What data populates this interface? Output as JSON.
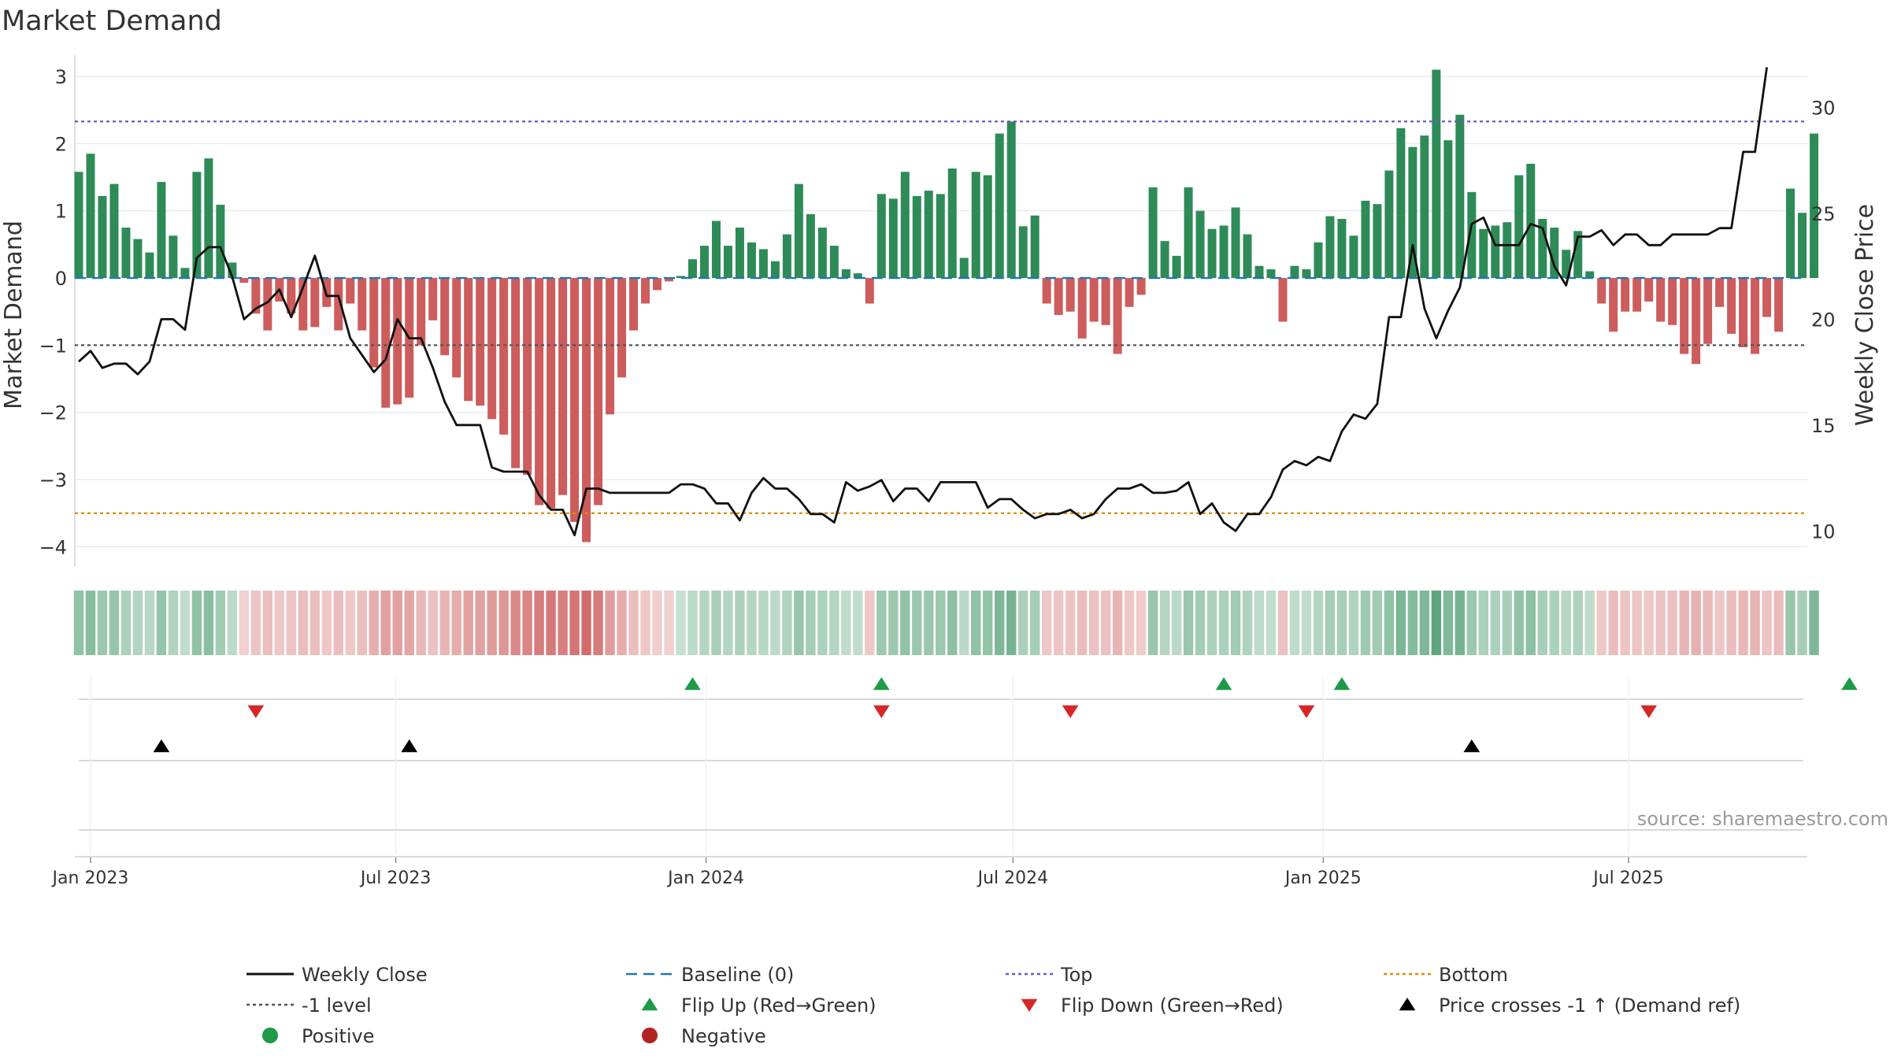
{
  "title": "Market Demand",
  "source": "source: sharemaestro.com",
  "colors": {
    "positive": "#2e8b57",
    "negative": "#cd5c5c",
    "price": "#111111",
    "baseline": "#1f77b4",
    "top": "#6a5acd",
    "bottom": "#e08a00",
    "level": "#555555",
    "flip_up": "#1f9a48",
    "flip_down": "#d62728",
    "cross": "#000000"
  },
  "chart_data": {
    "type": "bar",
    "title": "Market Demand",
    "ylabel": "Market Demand",
    "y2label": "Weekly Close Price",
    "ylim": [
      -4.3,
      3.2
    ],
    "y2lim": [
      8.3,
      32.1
    ],
    "yticks": [
      "3",
      "2",
      "1",
      "0",
      "−1",
      "−2",
      "−3",
      "−4"
    ],
    "ytick_values": [
      3,
      2,
      1,
      0,
      -1,
      -2,
      -3,
      -4
    ],
    "y2ticks": [
      "30",
      "25",
      "20",
      "15",
      "10"
    ],
    "y2tick_values": [
      30,
      25,
      20,
      15,
      10
    ],
    "xticks": [
      "Jan 2023",
      "Jul 2023",
      "Jan 2024",
      "Jul 2024",
      "Jan 2025",
      "Jul 2025"
    ],
    "xtick_dates": [
      "2023-01-01",
      "2023-07-01",
      "2024-01-01",
      "2024-07-01",
      "2025-01-01",
      "2025-07-01"
    ],
    "first_week": "2022-12-25",
    "week_step_days": 7,
    "reference_lines": {
      "baseline": 0,
      "top": 2.33,
      "bottom": -3.5,
      "level": -1
    },
    "series": [
      {
        "name": "Market Demand",
        "values": [
          1.58,
          1.85,
          1.22,
          1.4,
          0.75,
          0.58,
          0.38,
          1.43,
          0.63,
          0.15,
          1.58,
          1.78,
          1.09,
          0.23,
          -0.07,
          -0.53,
          -0.78,
          -0.35,
          -0.53,
          -0.78,
          -0.73,
          -0.43,
          -0.78,
          -0.38,
          -0.78,
          -1.33,
          -1.93,
          -1.88,
          -1.78,
          -1.0,
          -0.63,
          -1.15,
          -1.48,
          -1.83,
          -1.9,
          -2.1,
          -2.33,
          -2.83,
          -2.93,
          -3.38,
          -3.43,
          -3.23,
          -3.63,
          -3.93,
          -3.38,
          -2.03,
          -1.48,
          -0.78,
          -0.38,
          -0.18,
          -0.05,
          0.03,
          0.28,
          0.48,
          0.85,
          0.48,
          0.75,
          0.53,
          0.43,
          0.25,
          0.65,
          1.4,
          0.95,
          0.75,
          0.48,
          0.13,
          0.07,
          -0.38,
          1.25,
          1.18,
          1.58,
          1.22,
          1.3,
          1.25,
          1.63,
          0.3,
          1.58,
          1.53,
          2.15,
          2.33,
          0.77,
          0.93,
          -0.38,
          -0.55,
          -0.5,
          -0.9,
          -0.65,
          -0.7,
          -1.13,
          -0.43,
          -0.25,
          1.35,
          0.55,
          0.33,
          1.35,
          1.0,
          0.73,
          0.78,
          1.05,
          0.65,
          0.18,
          0.13,
          -0.65,
          0.18,
          0.13,
          0.53,
          0.92,
          0.88,
          0.63,
          1.15,
          1.1,
          1.6,
          2.23,
          1.95,
          2.12,
          3.1,
          2.05,
          2.43,
          1.28,
          0.73,
          0.78,
          0.83,
          1.53,
          1.7,
          0.88,
          0.75,
          0.42,
          0.7,
          0.1,
          -0.38,
          -0.8,
          -0.5,
          -0.5,
          -0.35,
          -0.65,
          -0.7,
          -1.13,
          -1.28,
          -0.98,
          -0.43,
          -0.83,
          -1.03,
          -1.13,
          -0.58,
          -0.8,
          1.33,
          0.97,
          2.15
        ]
      },
      {
        "name": "Weekly Close",
        "values": [
          18.0,
          18.5,
          17.7,
          17.9,
          17.9,
          17.4,
          18.0,
          20.0,
          20.0,
          19.5,
          22.9,
          23.4,
          23.4,
          22.0,
          20.0,
          20.5,
          20.8,
          21.4,
          20.1,
          21.5,
          23.0,
          21.1,
          21.1,
          19.1,
          18.3,
          17.5,
          18.1,
          20.0,
          19.1,
          19.1,
          17.7,
          16.1,
          15.0,
          15.0,
          15.0,
          13.0,
          12.8,
          12.8,
          12.8,
          11.7,
          11.0,
          11.0,
          9.8,
          12.0,
          12.0,
          11.8,
          11.8,
          11.8,
          11.8,
          11.8,
          11.8,
          12.2,
          12.2,
          12.0,
          11.3,
          11.3,
          10.5,
          11.8,
          12.5,
          12.0,
          12.0,
          11.5,
          10.8,
          10.8,
          10.4,
          12.3,
          11.9,
          12.1,
          12.4,
          11.4,
          12.0,
          12.0,
          11.4,
          12.3,
          12.3,
          12.3,
          12.3,
          11.1,
          11.5,
          11.5,
          11.0,
          10.6,
          10.8,
          10.8,
          11.0,
          10.6,
          10.8,
          11.5,
          12.0,
          12.0,
          12.2,
          11.8,
          11.8,
          11.9,
          12.3,
          10.8,
          11.3,
          10.4,
          10.0,
          10.8,
          10.8,
          11.6,
          12.9,
          13.3,
          13.1,
          13.5,
          13.3,
          14.7,
          15.5,
          15.3,
          16.0,
          20.1,
          20.1,
          23.5,
          20.5,
          19.1,
          20.4,
          21.5,
          24.5,
          24.8,
          23.5,
          23.5,
          23.5,
          24.5,
          24.3,
          22.5,
          21.6,
          23.9,
          23.9,
          24.2,
          23.5,
          24.0,
          24.0,
          23.5,
          23.5,
          24.0,
          24.0,
          24.0,
          24.0,
          24.3,
          24.3,
          27.9,
          27.9,
          31.9
        ]
      }
    ],
    "color_strip": {
      "label": "Demand intensity strip"
    },
    "flip_up_weeks": [
      52,
      68,
      97,
      107,
      150
    ],
    "flip_down_weeks": [
      15,
      68,
      84,
      104,
      133
    ],
    "cross_weeks": [
      7,
      28,
      118
    ],
    "legend_placement": "bottom",
    "grid": true
  },
  "legend": [
    {
      "label": "Weekly Close",
      "kind": "line",
      "color": "#111111"
    },
    {
      "label": "Baseline (0)",
      "kind": "dash",
      "color": "#1f77b4"
    },
    {
      "label": "Top",
      "kind": "dot",
      "color": "#6a5acd"
    },
    {
      "label": "Bottom",
      "kind": "dot",
      "color": "#e08a00"
    },
    {
      "label": "-1 level",
      "kind": "dot",
      "color": "#555555"
    },
    {
      "label": "Flip Up (Red→Green)",
      "kind": "tri-up",
      "color": "#1f9a48"
    },
    {
      "label": "Flip Down (Green→Red)",
      "kind": "tri-down",
      "color": "#d62728"
    },
    {
      "label": "Price crosses -1 ↑ (Demand ref)",
      "kind": "tri-up",
      "color": "#000000"
    },
    {
      "label": "Positive",
      "kind": "circle",
      "color": "#1f9a48"
    },
    {
      "label": "Negative",
      "kind": "circle",
      "color": "#b22222"
    }
  ]
}
